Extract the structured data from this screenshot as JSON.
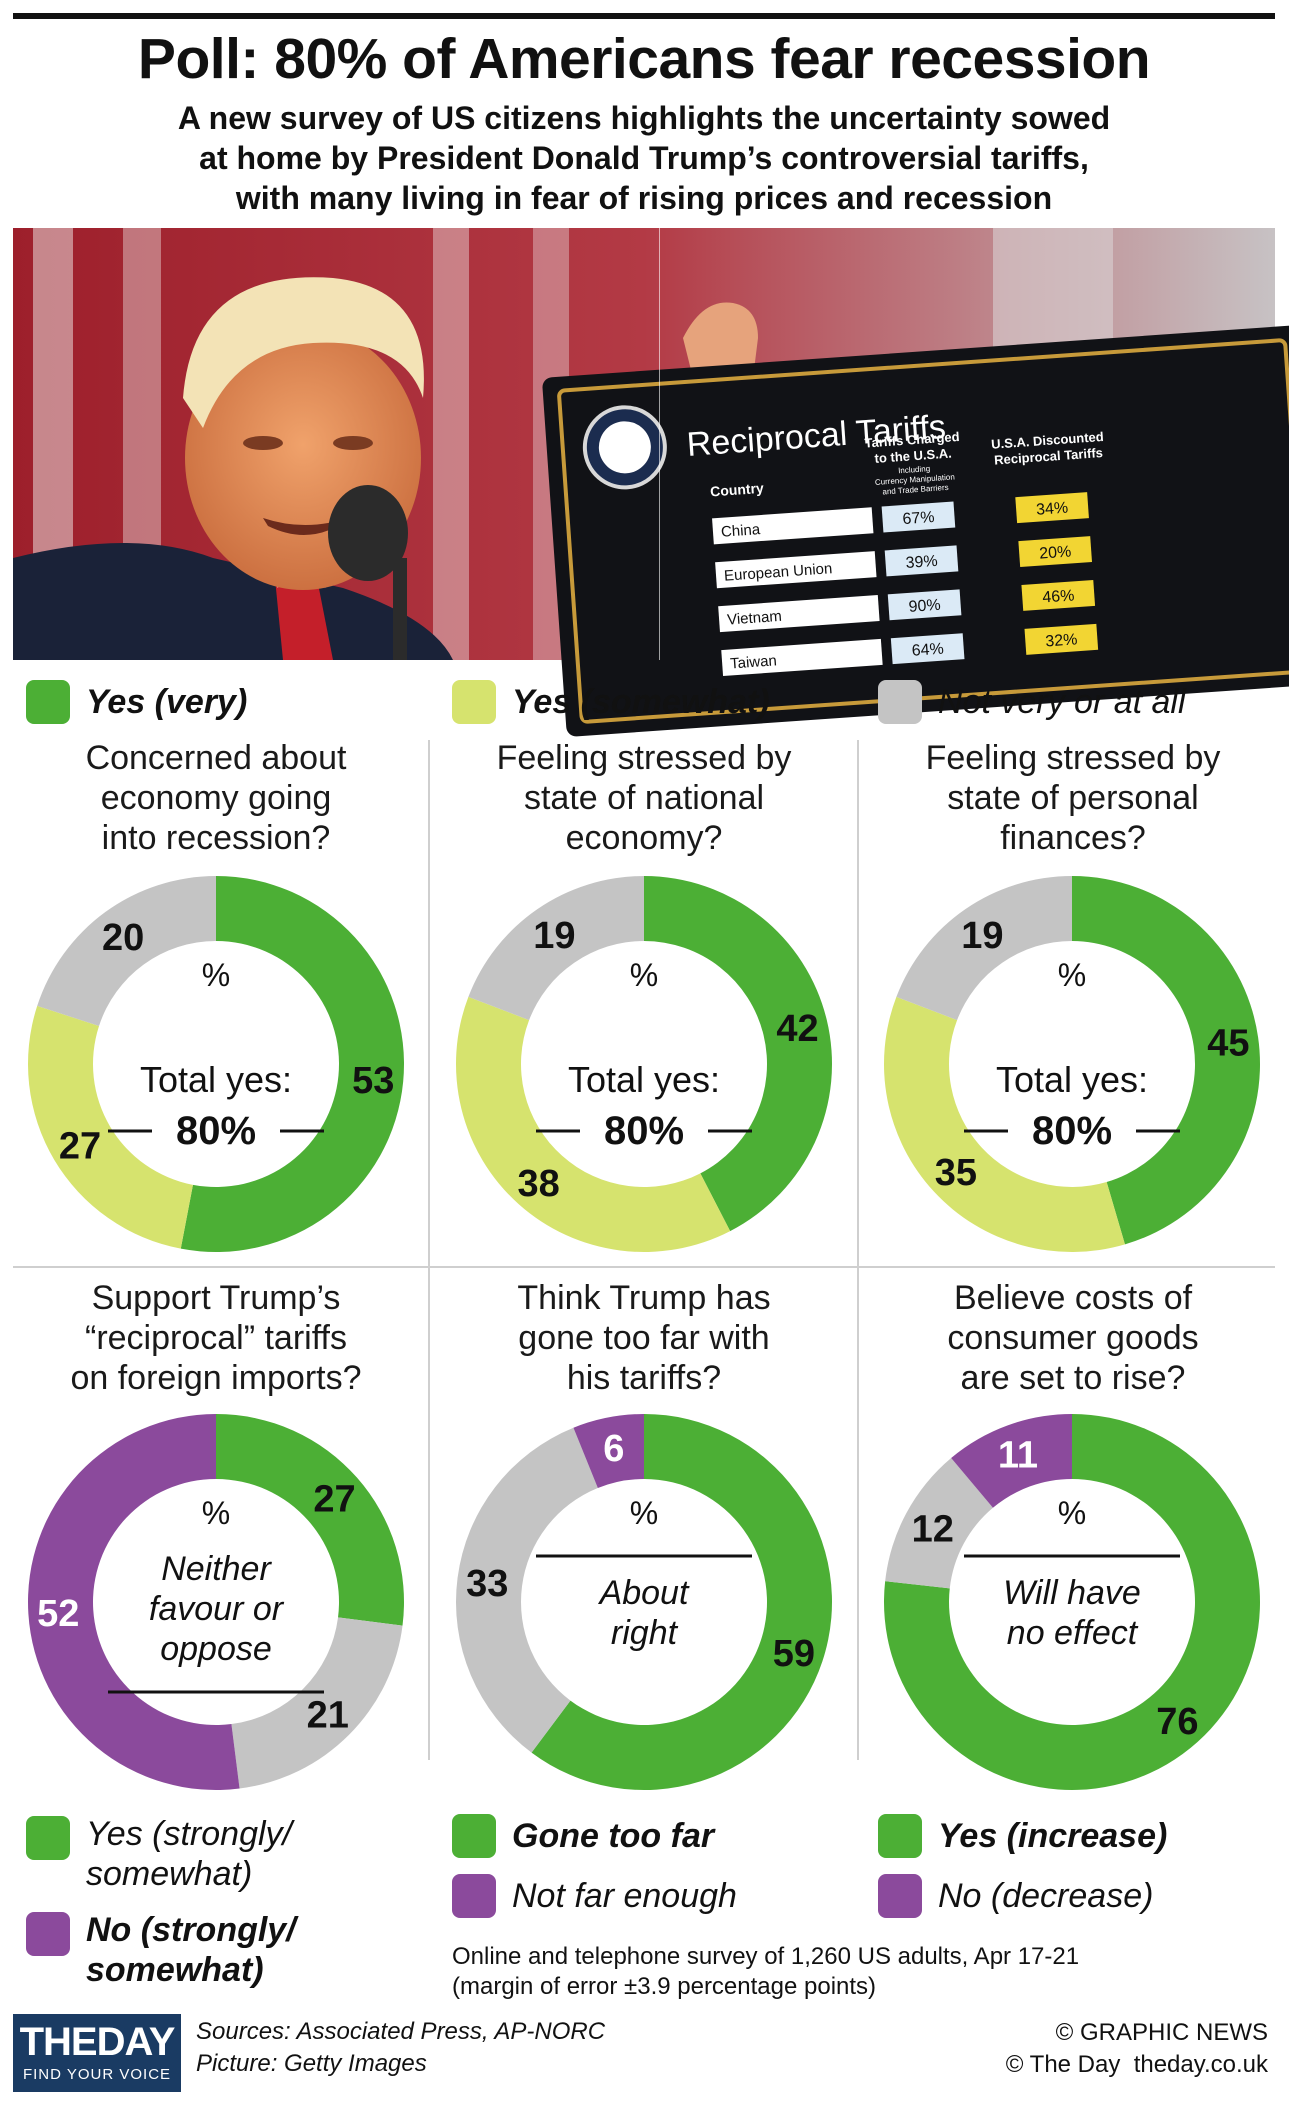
{
  "header": {
    "title": "Poll: 80% of Americans fear recession",
    "subtitle_lines": [
      "A new survey of US citizens highlights the uncertainty sowed",
      "at home by President Donald Trump’s controversial tariffs,",
      "with many living in fear of rising prices and recession"
    ]
  },
  "photo": {
    "board_title": "Reciprocal Tariffs",
    "col_country": "Country",
    "col_charged": [
      "Tariffs Charged",
      "to the U.S.A.",
      "Including",
      "Currency Manipulation",
      "and Trade Barriers"
    ],
    "col_discounted": [
      "U.S.A. Discounted",
      "Reciprocal Tariffs"
    ],
    "rows": [
      {
        "country": "China",
        "charged": "67%",
        "discounted": "34%"
      },
      {
        "country": "European Union",
        "charged": "39%",
        "discounted": "20%"
      },
      {
        "country": "Vietnam",
        "charged": "90%",
        "discounted": "46%"
      },
      {
        "country": "Taiwan",
        "charged": "64%",
        "discounted": "32%"
      }
    ]
  },
  "colors": {
    "green": "#4caf35",
    "yellow": "#d6e36e",
    "grey": "#c4c4c4",
    "purple": "#8b4a9c"
  },
  "legend_top": [
    {
      "label": "Yes (very)",
      "color": "#4caf35",
      "bold": true
    },
    {
      "label": "Yes (somewhat)",
      "color": "#d6e36e",
      "bold": true
    },
    {
      "label": "Not very or at all",
      "color": "#c4c4c4",
      "bold": false
    }
  ],
  "chart_data": [
    {
      "type": "pie",
      "title_lines": [
        "Concerned about",
        "economy going",
        "into recession?"
      ],
      "unit": "%",
      "center_lines": [
        "Total yes:",
        "80%"
      ],
      "slices": [
        {
          "label": "Yes (very)",
          "value": 53,
          "color": "#4caf35"
        },
        {
          "label": "Yes (somewhat)",
          "value": 27,
          "color": "#d6e36e"
        },
        {
          "label": "Not very or at all",
          "value": 20,
          "color": "#c4c4c4"
        }
      ]
    },
    {
      "type": "pie",
      "title_lines": [
        "Feeling stressed by",
        "state of national",
        "economy?"
      ],
      "unit": "%",
      "center_lines": [
        "Total yes:",
        "80%"
      ],
      "slices": [
        {
          "label": "Yes (very)",
          "value": 42,
          "color": "#4caf35"
        },
        {
          "label": "Yes (somewhat)",
          "value": 38,
          "color": "#d6e36e"
        },
        {
          "label": "Not very or at all",
          "value": 19,
          "color": "#c4c4c4"
        }
      ]
    },
    {
      "type": "pie",
      "title_lines": [
        "Feeling stressed by",
        "state of personal",
        "finances?"
      ],
      "unit": "%",
      "center_lines": [
        "Total yes:",
        "80%"
      ],
      "slices": [
        {
          "label": "Yes (very)",
          "value": 45,
          "color": "#4caf35"
        },
        {
          "label": "Yes (somewhat)",
          "value": 35,
          "color": "#d6e36e"
        },
        {
          "label": "Not very or at all",
          "value": 19,
          "color": "#c4c4c4"
        }
      ]
    },
    {
      "type": "pie",
      "title_lines": [
        "Support Trump’s",
        "“reciprocal” tariffs",
        "on foreign imports?"
      ],
      "unit": "%",
      "center_lines": [
        "Neither",
        "favour or",
        "oppose"
      ],
      "slices": [
        {
          "label": "Yes (strongly/ somewhat)",
          "value": 27,
          "color": "#4caf35"
        },
        {
          "label": "Neither favour or oppose",
          "value": 21,
          "color": "#c4c4c4"
        },
        {
          "label": "No (strongly/ somewhat)",
          "value": 52,
          "color": "#8b4a9c"
        }
      ]
    },
    {
      "type": "pie",
      "title_lines": [
        "Think Trump has",
        "gone too far with",
        "his tariffs?"
      ],
      "unit": "%",
      "center_lines": [
        "About",
        "right"
      ],
      "slices": [
        {
          "label": "Gone too far",
          "value": 59,
          "color": "#4caf35"
        },
        {
          "label": "About right",
          "value": 33,
          "color": "#c4c4c4"
        },
        {
          "label": "Not far enough",
          "value": 6,
          "color": "#8b4a9c"
        }
      ]
    },
    {
      "type": "pie",
      "title_lines": [
        "Believe costs of",
        "consumer goods",
        "are set to rise?"
      ],
      "unit": "%",
      "center_lines": [
        "Will have",
        "no effect"
      ],
      "slices": [
        {
          "label": "Yes (increase)",
          "value": 76,
          "color": "#4caf35"
        },
        {
          "label": "Will have no effect",
          "value": 12,
          "color": "#c4c4c4"
        },
        {
          "label": "No (decrease)",
          "value": 11,
          "color": "#8b4a9c"
        }
      ]
    }
  ],
  "legend_bottom": {
    "col1": [
      {
        "lines": [
          "Yes (strongly/",
          "somewhat)"
        ],
        "color": "#4caf35",
        "bold": false
      },
      {
        "lines": [
          "No (strongly/",
          "somewhat)"
        ],
        "color": "#8b4a9c",
        "bold": true
      }
    ],
    "col2": [
      {
        "lines": [
          "Gone too far"
        ],
        "color": "#4caf35",
        "bold": true
      },
      {
        "lines": [
          "Not far enough"
        ],
        "color": "#8b4a9c",
        "bold": false
      }
    ],
    "col3": [
      {
        "lines": [
          "Yes (increase)"
        ],
        "color": "#4caf35",
        "bold": true
      },
      {
        "lines": [
          "No (decrease)"
        ],
        "color": "#8b4a9c",
        "bold": false
      }
    ]
  },
  "footer": {
    "survey_note_lines": [
      "Online and telephone survey of 1,260 US adults, Apr 17-21",
      "(margin of error ±3.9 percentage points)"
    ],
    "logo_main": "THEDAY",
    "logo_tag": "FIND YOUR VOICE",
    "sources": "Sources: Associated Press, AP-NORC",
    "picture": "Picture: Getty Images",
    "copyright1": "© GRAPHIC NEWS",
    "copyright2": "© The Day  theday.co.uk"
  }
}
